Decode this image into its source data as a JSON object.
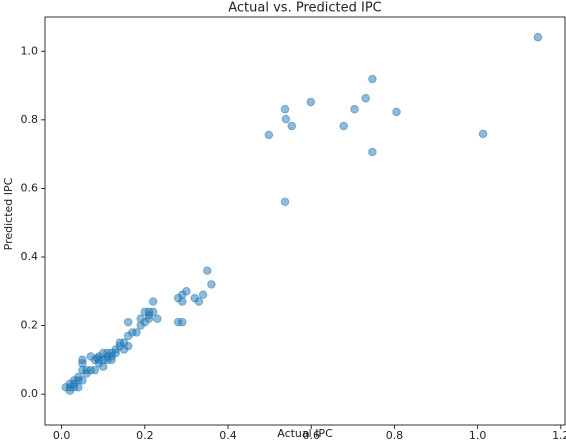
{
  "chart_data": {
    "type": "scatter",
    "title": "Actual vs. Predicted IPC",
    "x_label": "Actual IPC",
    "y_label": "Predicted IPC",
    "color": "#1f77b4",
    "x": [
      1.145,
      1.013,
      0.747,
      0.731,
      0.704,
      0.678,
      0.747,
      0.805,
      0.599,
      0.537,
      0.539,
      0.553,
      0.498,
      0.537,
      0.35,
      0.36,
      0.3,
      0.29,
      0.28,
      0.29,
      0.32,
      0.33,
      0.34,
      0.22,
      0.28,
      0.29,
      0.23,
      0.2,
      0.21,
      0.21,
      0.2,
      0.19,
      0.16,
      0.17,
      0.18,
      0.16,
      0.15,
      0.14,
      0.15,
      0.13,
      0.16,
      0.12,
      0.11,
      0.1,
      0.09,
      0.08,
      0.1,
      0.09,
      0.07,
      0.06,
      0.05,
      0.05,
      0.04,
      0.04,
      0.03,
      0.02,
      0.02,
      0.01,
      0.03,
      0.05,
      0.06,
      0.08,
      0.1,
      0.11,
      0.12,
      0.13,
      0.14,
      0.21,
      0.22,
      0.19,
      0.04,
      0.03,
      0.02,
      0.05,
      0.09,
      0.07,
      0.085,
      0.11,
      0.12
    ],
    "y": [
      1.041,
      0.759,
      0.919,
      0.863,
      0.831,
      0.782,
      0.706,
      0.823,
      0.852,
      0.831,
      0.802,
      0.782,
      0.756,
      0.561,
      0.36,
      0.32,
      0.3,
      0.29,
      0.28,
      0.27,
      0.28,
      0.27,
      0.29,
      0.27,
      0.21,
      0.21,
      0.22,
      0.24,
      0.24,
      0.23,
      0.21,
      0.2,
      0.21,
      0.18,
      0.18,
      0.17,
      0.15,
      0.14,
      0.13,
      0.13,
      0.14,
      0.12,
      0.11,
      0.1,
      0.11,
      0.1,
      0.12,
      0.09,
      0.07,
      0.06,
      0.09,
      0.07,
      0.05,
      0.04,
      0.03,
      0.02,
      0.03,
      0.02,
      0.04,
      0.04,
      0.07,
      0.07,
      0.08,
      0.1,
      0.11,
      0.12,
      0.15,
      0.22,
      0.24,
      0.22,
      0.02,
      0.02,
      0.01,
      0.1,
      0.1,
      0.11,
      0.105,
      0.12,
      0.1
    ],
    "xlim": [
      -0.04,
      1.21
    ],
    "ylim": [
      -0.09,
      1.1
    ],
    "xticks": [
      {
        "value": 0,
        "label": "0.0"
      },
      0.2,
      0.4,
      0.6,
      0.8,
      {
        "value": 1,
        "label": "1.0"
      },
      1.2
    ],
    "yticks": [
      {
        "value": 0,
        "label": "0.0"
      },
      0.2,
      0.4,
      0.6,
      0.8,
      {
        "value": 1,
        "label": "1.0"
      }
    ]
  }
}
